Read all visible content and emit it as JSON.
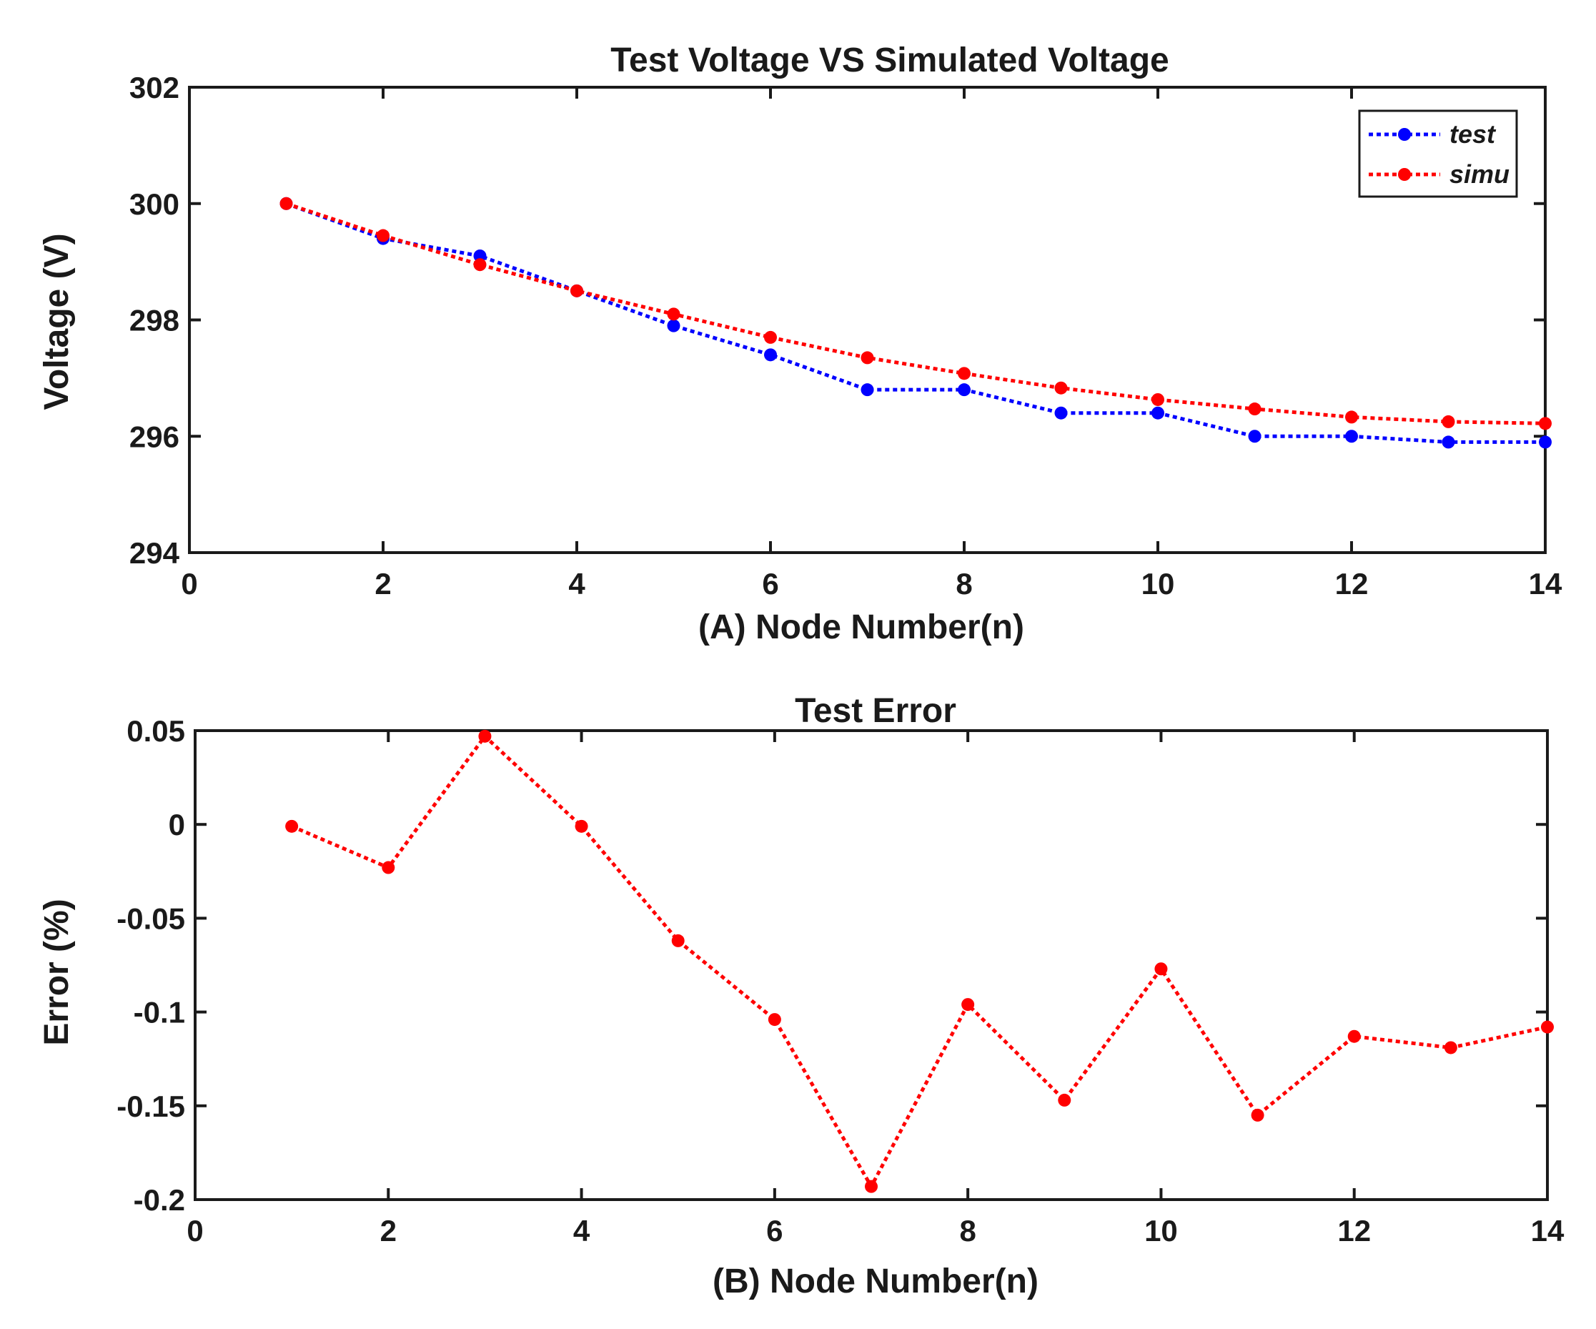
{
  "chart_data": [
    {
      "type": "line",
      "title": "Test Voltage VS Simulated Voltage",
      "xlabel": "(A)  Node Number(n)",
      "ylabel": "Voltage (V)",
      "xlim": [
        0,
        14
      ],
      "ylim": [
        294,
        302
      ],
      "xticks": [
        0,
        2,
        4,
        6,
        8,
        10,
        12,
        14
      ],
      "yticks": [
        294,
        296,
        298,
        300,
        302
      ],
      "xtick_labels": [
        "0",
        "2",
        "4",
        "6",
        "8",
        "10",
        "12",
        "14"
      ],
      "ytick_labels": [
        "294",
        "296",
        "298",
        "300",
        "302"
      ],
      "grid": false,
      "legend_position": "top-right",
      "x": [
        1,
        2,
        3,
        4,
        5,
        6,
        7,
        8,
        9,
        10,
        11,
        12,
        13,
        14
      ],
      "series": [
        {
          "name": "test",
          "color": "#0000ff",
          "values": [
            300.0,
            299.4,
            299.1,
            298.5,
            297.9,
            297.4,
            296.8,
            296.8,
            296.4,
            296.4,
            296.0,
            296.0,
            295.9,
            295.9
          ]
        },
        {
          "name": "simu",
          "color": "#ff0000",
          "values": [
            300.0,
            299.45,
            298.95,
            298.5,
            298.1,
            297.7,
            297.35,
            297.08,
            296.83,
            296.63,
            296.47,
            296.33,
            296.25,
            296.22
          ]
        }
      ]
    },
    {
      "type": "line",
      "title": "Test Error",
      "xlabel": "(B) Node Number(n)",
      "ylabel": "Error (%)",
      "xlim": [
        0,
        14
      ],
      "ylim": [
        -0.2,
        0.05
      ],
      "xticks": [
        0,
        2,
        4,
        6,
        8,
        10,
        12,
        14
      ],
      "yticks": [
        -0.2,
        -0.15,
        -0.1,
        -0.05,
        0,
        0.05
      ],
      "xtick_labels": [
        "0",
        "2",
        "4",
        "6",
        "8",
        "10",
        "12",
        "14"
      ],
      "ytick_labels": [
        "-0.2",
        "-0.15",
        "-0.1",
        "-0.05",
        "0",
        "0.05"
      ],
      "grid": false,
      "x": [
        1,
        2,
        3,
        4,
        5,
        6,
        7,
        8,
        9,
        10,
        11,
        12,
        13,
        14
      ],
      "series": [
        {
          "name": "error",
          "color": "#ff0000",
          "values": [
            -0.001,
            -0.023,
            0.047,
            -0.001,
            -0.062,
            -0.104,
            -0.193,
            -0.096,
            -0.147,
            -0.077,
            -0.155,
            -0.113,
            -0.119,
            -0.108
          ]
        }
      ]
    }
  ]
}
